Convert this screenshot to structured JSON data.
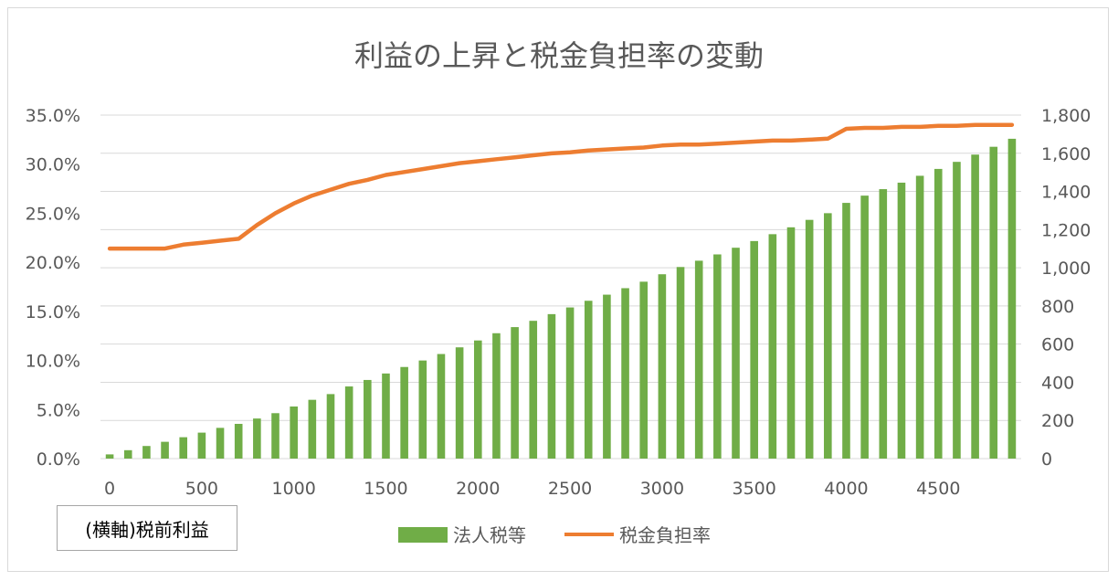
{
  "chart_data": {
    "type": "bar+line",
    "title": "利益の上昇と税金負担率の変動",
    "xlabel": "(横軸)税前利益",
    "x_ticks": [
      "0",
      "500",
      "1000",
      "1500",
      "2000",
      "2500",
      "3000",
      "3500",
      "4000",
      "4500"
    ],
    "left_axis": {
      "ylim": [
        0,
        35
      ],
      "ticks": [
        "0.0%",
        "5.0%",
        "10.0%",
        "15.0%",
        "20.0%",
        "25.0%",
        "30.0%",
        "35.0%"
      ]
    },
    "right_axis": {
      "ylim": [
        0,
        1800
      ],
      "ticks": [
        "0",
        "200",
        "400",
        "600",
        "800",
        "1,000",
        "1,200",
        "1,400",
        "1,600",
        "1,800"
      ]
    },
    "x": [
      0,
      100,
      200,
      300,
      400,
      500,
      600,
      700,
      800,
      900,
      1000,
      1100,
      1200,
      1300,
      1400,
      1500,
      1600,
      1700,
      1800,
      1900,
      2000,
      2100,
      2200,
      2300,
      2400,
      2500,
      2600,
      2700,
      2800,
      2900,
      3000,
      3100,
      3200,
      3300,
      3400,
      3500,
      3600,
      3700,
      3800,
      3900,
      4000,
      4100,
      4200,
      4300,
      4400,
      4500,
      4600,
      4700,
      4800,
      4900
    ],
    "series": [
      {
        "name": "法人税等",
        "axis": "right",
        "type": "bar",
        "color": "#70ad47",
        "values": [
          22,
          44,
          66,
          88,
          112,
          136,
          161,
          182,
          210,
          238,
          273,
          308,
          338,
          378,
          412,
          446,
          480,
          514,
          548,
          583,
          619,
          657,
          689,
          722,
          757,
          792,
          827,
          859,
          893,
          927,
          966,
          1004,
          1037,
          1070,
          1105,
          1140,
          1176,
          1212,
          1251,
          1286,
          1340,
          1378,
          1412,
          1446,
          1482,
          1518,
          1555,
          1593,
          1634,
          1676
        ]
      },
      {
        "name": "税金負担率",
        "axis": "left",
        "type": "line",
        "color": "#ed7d31",
        "values": [
          21.4,
          21.4,
          21.4,
          21.4,
          21.8,
          22.0,
          22.2,
          22.4,
          23.8,
          25.0,
          26.0,
          26.8,
          27.4,
          28.0,
          28.4,
          28.9,
          29.2,
          29.5,
          29.8,
          30.1,
          30.3,
          30.5,
          30.7,
          30.9,
          31.1,
          31.2,
          31.4,
          31.5,
          31.6,
          31.7,
          31.9,
          32.0,
          32.0,
          32.1,
          32.2,
          32.3,
          32.4,
          32.4,
          32.5,
          32.6,
          33.6,
          33.7,
          33.7,
          33.8,
          33.8,
          33.9,
          33.9,
          34.0,
          34.0,
          34.0
        ]
      }
    ],
    "grid": true,
    "legend": "bottom"
  }
}
